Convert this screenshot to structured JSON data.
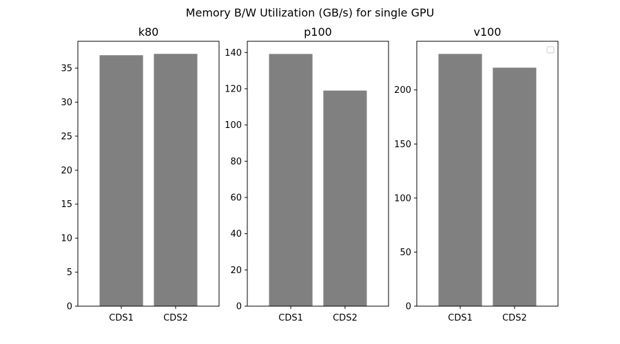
{
  "figure_title": "Memory B/W Utilization (GB/s) for single GPU",
  "colors": {
    "bar": "#808080",
    "axis": "#000000",
    "background": "#ffffff"
  },
  "chart_data": [
    {
      "type": "bar",
      "title": "k80",
      "categories": [
        "CDS1",
        "CDS2"
      ],
      "values": [
        36.9,
        37.1
      ],
      "ylim": [
        0,
        38.95
      ],
      "yticks": [
        0,
        5,
        10,
        15,
        20,
        25,
        30,
        35
      ],
      "xlabel": "",
      "ylabel": "",
      "grid": false,
      "legend": null
    },
    {
      "type": "bar",
      "title": "p100",
      "categories": [
        "CDS1",
        "CDS2"
      ],
      "values": [
        139.2,
        119
      ],
      "ylim": [
        0,
        146.2
      ],
      "yticks": [
        0,
        20,
        40,
        60,
        80,
        100,
        120,
        140
      ],
      "xlabel": "",
      "ylabel": "",
      "grid": false,
      "legend": null
    },
    {
      "type": "bar",
      "title": "v100",
      "categories": [
        "CDS1",
        "CDS2"
      ],
      "values": [
        233.3,
        220.6
      ],
      "ylim": [
        0,
        245
      ],
      "yticks": [
        0,
        50,
        100,
        150,
        200
      ],
      "xlabel": "",
      "ylabel": "",
      "grid": false,
      "legend": "top-right (empty)"
    }
  ]
}
